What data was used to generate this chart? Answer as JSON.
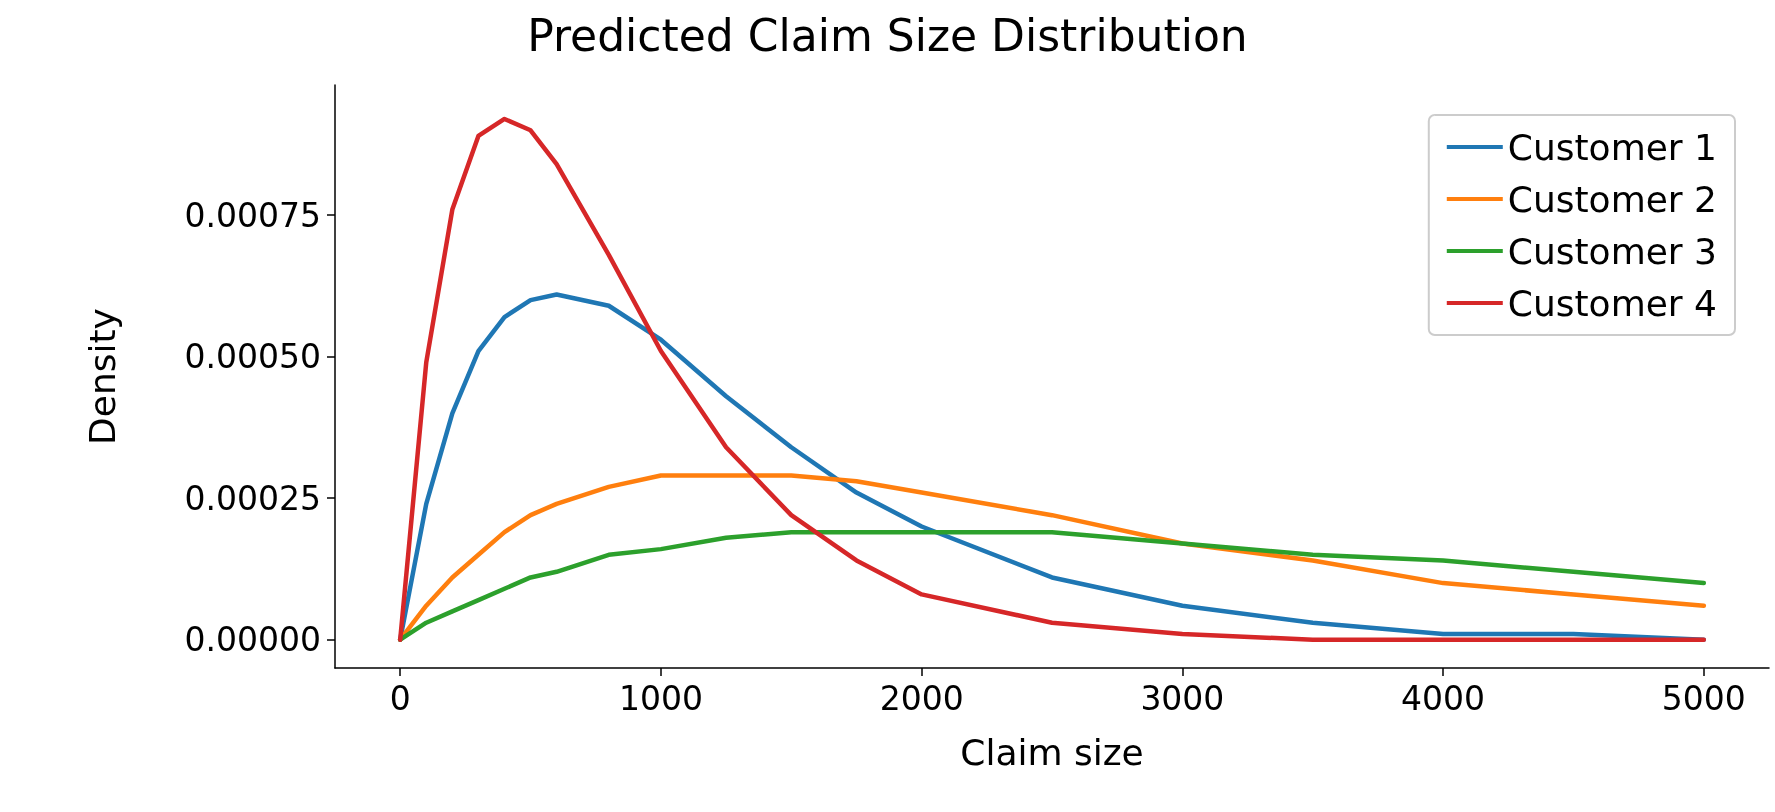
{
  "chart_data": {
    "type": "line",
    "title": "Predicted Claim Size Distribution",
    "xlabel": "Claim size",
    "ylabel": "Density",
    "x": [
      0,
      100,
      200,
      300,
      400,
      500,
      600,
      800,
      1000,
      1250,
      1500,
      1750,
      2000,
      2500,
      3000,
      3500,
      4000,
      4500,
      5000
    ],
    "series": [
      {
        "name": "Customer 1",
        "color": "#1f77b4",
        "values": [
          0,
          0.00024,
          0.0004,
          0.00051,
          0.00057,
          0.0006,
          0.00061,
          0.00059,
          0.00053,
          0.00043,
          0.00034,
          0.00026,
          0.0002,
          0.00011,
          6e-05,
          3e-05,
          1e-05,
          1e-05,
          0
        ]
      },
      {
        "name": "Customer 2",
        "color": "#ff7f0e",
        "values": [
          0,
          6e-05,
          0.00011,
          0.00015,
          0.00019,
          0.00022,
          0.00024,
          0.00027,
          0.00029,
          0.00029,
          0.00029,
          0.00028,
          0.00026,
          0.00022,
          0.00017,
          0.00014,
          0.0001,
          8e-05,
          6e-05
        ]
      },
      {
        "name": "Customer 3",
        "color": "#2ca02c",
        "values": [
          0,
          3e-05,
          5e-05,
          7e-05,
          9e-05,
          0.00011,
          0.00012,
          0.00015,
          0.00016,
          0.00018,
          0.00019,
          0.00019,
          0.00019,
          0.00019,
          0.00017,
          0.00015,
          0.00014,
          0.00012,
          0.0001
        ]
      },
      {
        "name": "Customer 4",
        "color": "#d62728",
        "values": [
          0,
          0.00049,
          0.00076,
          0.00089,
          0.00092,
          0.0009,
          0.00084,
          0.00068,
          0.00051,
          0.00034,
          0.00022,
          0.00014,
          8e-05,
          3e-05,
          1e-05,
          0,
          0,
          0,
          0
        ]
      }
    ],
    "xlim": [
      -250,
      5250
    ],
    "xticks": [
      0,
      1000,
      2000,
      3000,
      4000,
      5000
    ],
    "ylim": [
      -5e-05,
      0.00098
    ],
    "yticks": [
      {
        "value": 0,
        "label": "0.00000"
      },
      {
        "value": 0.00025,
        "label": "0.00025"
      },
      {
        "value": 0.0005,
        "label": "0.00050"
      },
      {
        "value": 0.00075,
        "label": "0.00075"
      }
    ],
    "grid": false,
    "legend": "top right",
    "marker": "none",
    "line_style": "solid"
  }
}
